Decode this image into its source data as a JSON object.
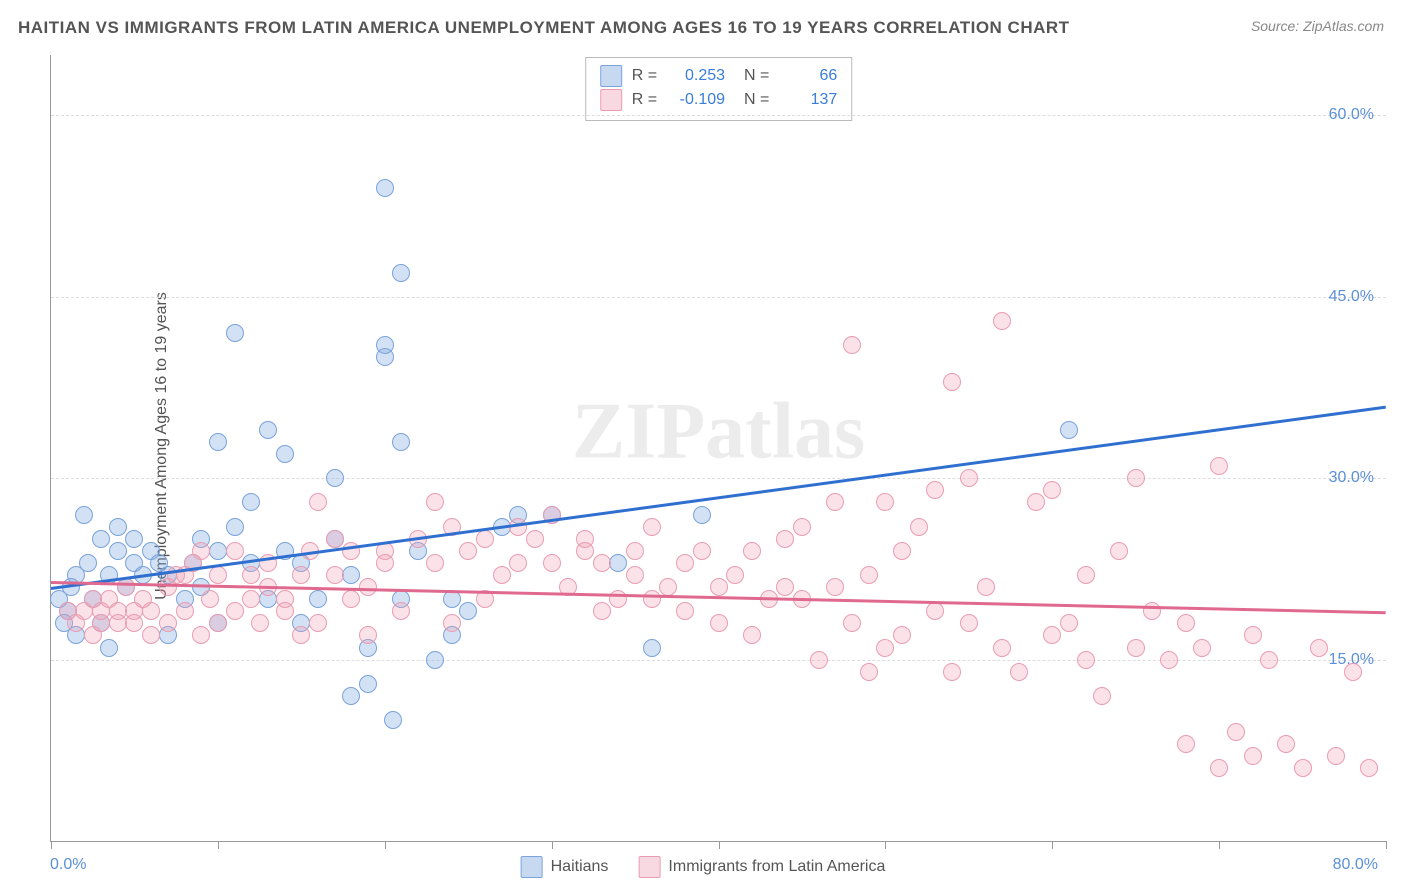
{
  "title": "HAITIAN VS IMMIGRANTS FROM LATIN AMERICA UNEMPLOYMENT AMONG AGES 16 TO 19 YEARS CORRELATION CHART",
  "source": "Source: ZipAtlas.com",
  "y_axis_label": "Unemployment Among Ages 16 to 19 years",
  "watermark": "ZIPatlas",
  "chart": {
    "type": "scatter",
    "xlim": [
      0,
      80
    ],
    "ylim": [
      0,
      65
    ],
    "x_ticks": [
      0,
      10,
      20,
      30,
      40,
      50,
      60,
      70,
      80
    ],
    "y_ticks": [
      15,
      30,
      45,
      60
    ],
    "y_tick_labels": [
      "15.0%",
      "30.0%",
      "45.0%",
      "60.0%"
    ],
    "x_tick_left": "0.0%",
    "x_tick_right": "80.0%",
    "background_color": "#ffffff",
    "grid_color": "#dddddd",
    "axis_color": "#999999",
    "accent_text_color": "#5b8fd6",
    "marker_size": 18,
    "series": [
      {
        "name": "Haitians",
        "color_fill": "rgba(130,170,225,0.35)",
        "color_stroke": "#7aa3d9",
        "trend_color": "#2f6fd0",
        "R": "0.253",
        "N": "66",
        "trend": {
          "x1": 0,
          "y1": 21,
          "x2": 80,
          "y2": 36
        },
        "points": [
          [
            0.5,
            20
          ],
          [
            0.8,
            18
          ],
          [
            1,
            19
          ],
          [
            1.2,
            21
          ],
          [
            1.5,
            22
          ],
          [
            1.5,
            17
          ],
          [
            2,
            27
          ],
          [
            2.2,
            23
          ],
          [
            2.5,
            20
          ],
          [
            3,
            25
          ],
          [
            3,
            18
          ],
          [
            3.5,
            22
          ],
          [
            3.5,
            16
          ],
          [
            4,
            24
          ],
          [
            4,
            26
          ],
          [
            4.5,
            21
          ],
          [
            5,
            23
          ],
          [
            5,
            25
          ],
          [
            5.5,
            22
          ],
          [
            6,
            24
          ],
          [
            6.5,
            23
          ],
          [
            7,
            22
          ],
          [
            7,
            17
          ],
          [
            8,
            20
          ],
          [
            8.5,
            23
          ],
          [
            9,
            25
          ],
          [
            9,
            21
          ],
          [
            10,
            18
          ],
          [
            10,
            24
          ],
          [
            10,
            33
          ],
          [
            11,
            26
          ],
          [
            11,
            42
          ],
          [
            12,
            28
          ],
          [
            12,
            23
          ],
          [
            13,
            34
          ],
          [
            13,
            20
          ],
          [
            14,
            32
          ],
          [
            14,
            24
          ],
          [
            15,
            23
          ],
          [
            15,
            18
          ],
          [
            16,
            20
          ],
          [
            17,
            25
          ],
          [
            17,
            30
          ],
          [
            18,
            22
          ],
          [
            18,
            12
          ],
          [
            19,
            16
          ],
          [
            19,
            13
          ],
          [
            20,
            54
          ],
          [
            20,
            40
          ],
          [
            20,
            41
          ],
          [
            20.5,
            10
          ],
          [
            21,
            33
          ],
          [
            21,
            20
          ],
          [
            21,
            47
          ],
          [
            22,
            24
          ],
          [
            23,
            15
          ],
          [
            24,
            17
          ],
          [
            24,
            20
          ],
          [
            25,
            19
          ],
          [
            27,
            26
          ],
          [
            28,
            27
          ],
          [
            30,
            27
          ],
          [
            34,
            23
          ],
          [
            36,
            16
          ],
          [
            39,
            27
          ],
          [
            61,
            34
          ]
        ]
      },
      {
        "name": "Immigrants from Latin America",
        "color_fill": "rgba(240,160,180,0.30)",
        "color_stroke": "#e99db2",
        "trend_color": "#e06a8f",
        "R": "-0.109",
        "N": "137",
        "trend": {
          "x1": 0,
          "y1": 21.5,
          "x2": 80,
          "y2": 19
        },
        "points": [
          [
            1,
            19
          ],
          [
            1.5,
            18
          ],
          [
            2,
            19
          ],
          [
            2.5,
            20
          ],
          [
            2.5,
            17
          ],
          [
            3,
            18
          ],
          [
            3,
            19
          ],
          [
            3.5,
            20
          ],
          [
            4,
            18
          ],
          [
            4,
            19
          ],
          [
            4.5,
            21
          ],
          [
            5,
            18
          ],
          [
            5,
            19
          ],
          [
            5.5,
            20
          ],
          [
            6,
            17
          ],
          [
            6,
            19
          ],
          [
            7,
            18
          ],
          [
            7,
            21
          ],
          [
            7.5,
            22
          ],
          [
            8,
            19
          ],
          [
            8,
            22
          ],
          [
            8.5,
            23
          ],
          [
            9,
            17
          ],
          [
            9,
            24
          ],
          [
            9.5,
            20
          ],
          [
            10,
            22
          ],
          [
            10,
            18
          ],
          [
            11,
            19
          ],
          [
            11,
            24
          ],
          [
            12,
            22
          ],
          [
            12,
            20
          ],
          [
            12.5,
            18
          ],
          [
            13,
            21
          ],
          [
            13,
            23
          ],
          [
            14,
            19
          ],
          [
            14,
            20
          ],
          [
            15,
            22
          ],
          [
            15,
            17
          ],
          [
            15.5,
            24
          ],
          [
            16,
            18
          ],
          [
            16,
            28
          ],
          [
            17,
            22
          ],
          [
            17,
            25
          ],
          [
            18,
            24
          ],
          [
            18,
            20
          ],
          [
            19,
            21
          ],
          [
            19,
            17
          ],
          [
            20,
            23
          ],
          [
            20,
            24
          ],
          [
            21,
            19
          ],
          [
            22,
            25
          ],
          [
            23,
            23
          ],
          [
            23,
            28
          ],
          [
            24,
            26
          ],
          [
            24,
            18
          ],
          [
            25,
            24
          ],
          [
            26,
            25
          ],
          [
            26,
            20
          ],
          [
            27,
            22
          ],
          [
            28,
            26
          ],
          [
            28,
            23
          ],
          [
            29,
            25
          ],
          [
            30,
            27
          ],
          [
            30,
            23
          ],
          [
            31,
            21
          ],
          [
            32,
            24
          ],
          [
            32,
            25
          ],
          [
            33,
            23
          ],
          [
            33,
            19
          ],
          [
            34,
            20
          ],
          [
            35,
            22
          ],
          [
            35,
            24
          ],
          [
            36,
            26
          ],
          [
            36,
            20
          ],
          [
            37,
            21
          ],
          [
            38,
            23
          ],
          [
            38,
            19
          ],
          [
            39,
            24
          ],
          [
            40,
            21
          ],
          [
            40,
            18
          ],
          [
            41,
            22
          ],
          [
            42,
            24
          ],
          [
            42,
            17
          ],
          [
            43,
            20
          ],
          [
            44,
            25
          ],
          [
            44,
            21
          ],
          [
            45,
            26
          ],
          [
            45,
            20
          ],
          [
            46,
            15
          ],
          [
            47,
            21
          ],
          [
            47,
            28
          ],
          [
            48,
            18
          ],
          [
            48,
            41
          ],
          [
            49,
            22
          ],
          [
            49,
            14
          ],
          [
            50,
            16
          ],
          [
            50,
            28
          ],
          [
            51,
            24
          ],
          [
            51,
            17
          ],
          [
            52,
            26
          ],
          [
            53,
            29
          ],
          [
            53,
            19
          ],
          [
            54,
            38
          ],
          [
            54,
            14
          ],
          [
            55,
            18
          ],
          [
            55,
            30
          ],
          [
            56,
            21
          ],
          [
            57,
            16
          ],
          [
            57,
            43
          ],
          [
            58,
            14
          ],
          [
            59,
            28
          ],
          [
            60,
            17
          ],
          [
            60,
            29
          ],
          [
            61,
            18
          ],
          [
            62,
            15
          ],
          [
            62,
            22
          ],
          [
            63,
            12
          ],
          [
            64,
            24
          ],
          [
            65,
            16
          ],
          [
            65,
            30
          ],
          [
            66,
            19
          ],
          [
            67,
            15
          ],
          [
            68,
            8
          ],
          [
            68,
            18
          ],
          [
            69,
            16
          ],
          [
            70,
            31
          ],
          [
            70,
            6
          ],
          [
            71,
            9
          ],
          [
            72,
            7
          ],
          [
            72,
            17
          ],
          [
            73,
            15
          ],
          [
            74,
            8
          ],
          [
            75,
            6
          ],
          [
            76,
            16
          ],
          [
            77,
            7
          ],
          [
            78,
            14
          ],
          [
            79,
            6
          ]
        ]
      }
    ]
  },
  "bottom_legend": {
    "a": "Haitians",
    "b": "Immigrants from Latin America"
  }
}
